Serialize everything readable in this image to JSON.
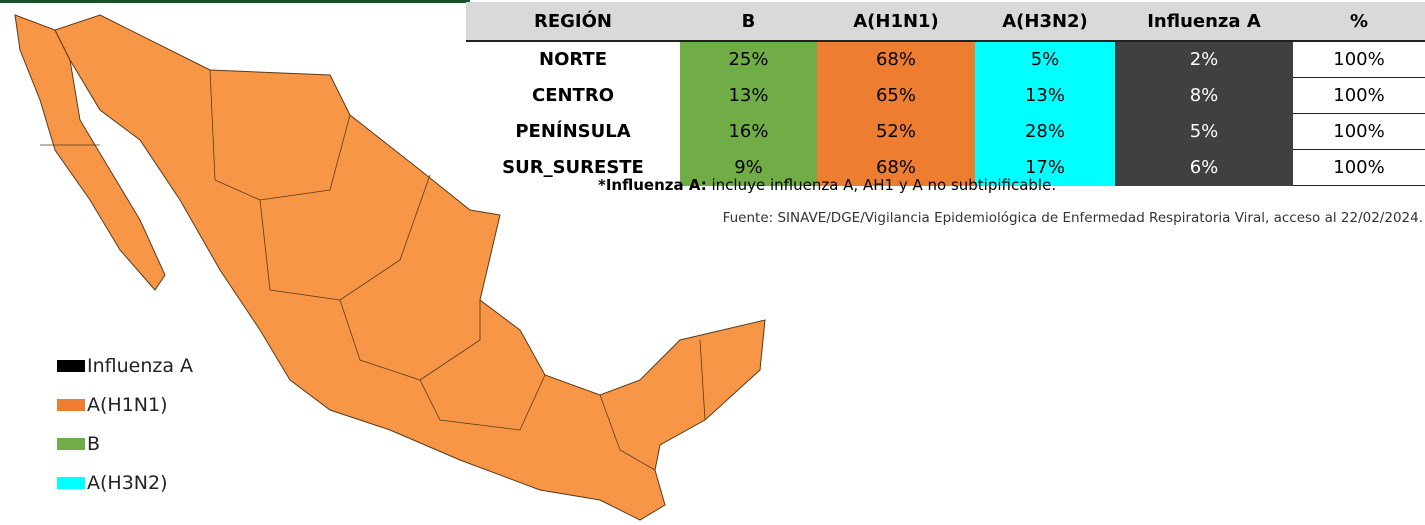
{
  "table": {
    "header": [
      "REGIÓN",
      "B",
      "A(H1N1)",
      "A(H3N2)",
      "Influenza A",
      "%"
    ],
    "rows": [
      [
        "NORTE",
        "25%",
        "68%",
        "5%",
        "2%",
        "100%"
      ],
      [
        "CENTRO",
        "13%",
        "65%",
        "13%",
        "8%",
        "100%"
      ],
      [
        "PENÍNSULA",
        "16%",
        "52%",
        "28%",
        "5%",
        "100%"
      ],
      [
        "SUR_SURESTE",
        "9%",
        "68%",
        "17%",
        "6%",
        "100%"
      ]
    ],
    "cell_colors": [
      "#70AD47",
      "#ED7D31",
      "#00FFFF",
      "#404040"
    ]
  },
  "note": {
    "label": "*Influenza A:",
    "text": "incluye influenza A, AH1 y A no subtipificable."
  },
  "source": "Fuente: SINAVE/DGE/Vigilancia Epidemiológica de Enfermedad Respiratoria Viral, acceso al 22/02/2024.",
  "legend": [
    {
      "label": "Influenza A",
      "color": "#000000"
    },
    {
      "label": "A(H1N1)",
      "color": "#ED7D31"
    },
    {
      "label": "B",
      "color": "#70AD47"
    },
    {
      "label": "A(H3N2)",
      "color": "#00FFFF"
    }
  ]
}
